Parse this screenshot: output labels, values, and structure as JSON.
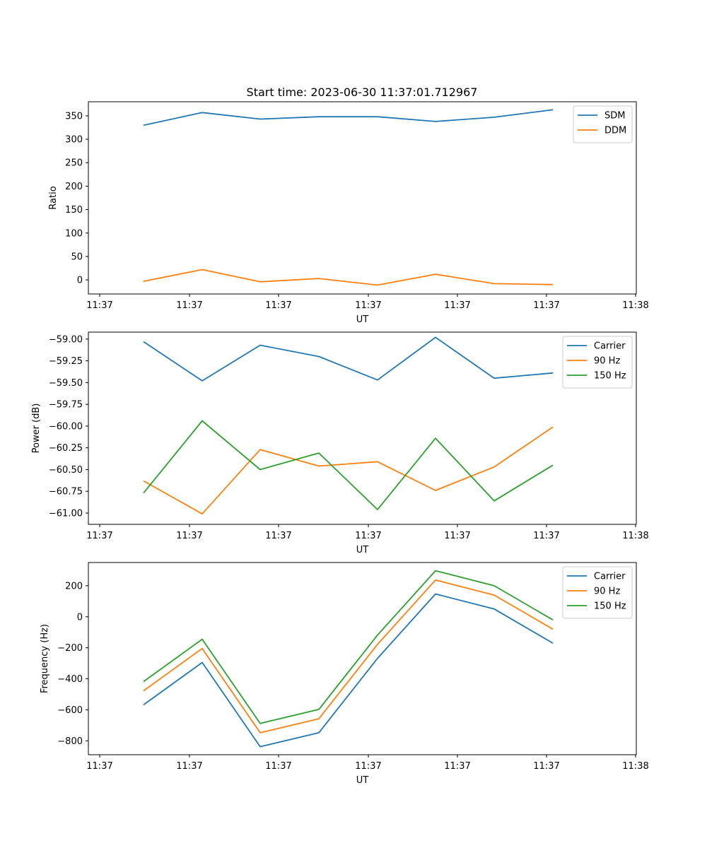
{
  "title": "Start time: 2023-06-30 11:37:01.712967",
  "chart_data": [
    {
      "type": "line",
      "title": "Start time: 2023-06-30 11:37:01.712967",
      "xlabel": "UT",
      "ylabel": "Ratio",
      "x_tick_labels": [
        "11:37",
        "11:37",
        "11:37",
        "11:37",
        "11:37",
        "11:37",
        "11:38"
      ],
      "ylim": [
        -30,
        380
      ],
      "yticks": [
        0,
        50,
        100,
        150,
        200,
        250,
        300,
        350
      ],
      "ytick_labels": [
        "0",
        "50",
        "100",
        "150",
        "200",
        "250",
        "300",
        "350"
      ],
      "legend_position": "top-right",
      "series": [
        {
          "name": "SDM",
          "color": "#1f77b4",
          "values": [
            330,
            357,
            343,
            348,
            348,
            338,
            347,
            363
          ]
        },
        {
          "name": "DDM",
          "color": "#ff7f0e",
          "values": [
            -3,
            22,
            -4,
            3,
            -11,
            12,
            -8,
            -10
          ]
        }
      ]
    },
    {
      "type": "line",
      "xlabel": "UT",
      "ylabel": "Power (dB)",
      "x_tick_labels": [
        "11:37",
        "11:37",
        "11:37",
        "11:37",
        "11:37",
        "11:37",
        "11:38"
      ],
      "ylim": [
        -61.13,
        -58.92
      ],
      "yticks": [
        -61.0,
        -60.75,
        -60.5,
        -60.25,
        -60.0,
        -59.75,
        -59.5,
        -59.25,
        -59.0
      ],
      "ytick_labels": [
        "−61.00",
        "−60.75",
        "−60.50",
        "−60.25",
        "−60.00",
        "−59.75",
        "−59.50",
        "−59.25",
        "−59.00"
      ],
      "legend_position": "top-right",
      "series": [
        {
          "name": "Carrier",
          "color": "#1f77b4",
          "values": [
            -59.03,
            -59.48,
            -59.07,
            -59.2,
            -59.47,
            -58.98,
            -59.45,
            -59.39
          ]
        },
        {
          "name": "90 Hz",
          "color": "#ff7f0e",
          "values": [
            -60.63,
            -61.01,
            -60.27,
            -60.46,
            -60.41,
            -60.74,
            -60.47,
            -60.01
          ]
        },
        {
          "name": "150 Hz",
          "color": "#2ca02c",
          "values": [
            -60.77,
            -59.94,
            -60.5,
            -60.31,
            -60.96,
            -60.14,
            -60.86,
            -60.45
          ]
        }
      ]
    },
    {
      "type": "line",
      "xlabel": "UT",
      "ylabel": "Frequency (Hz)",
      "x_tick_labels": [
        "11:37",
        "11:37",
        "11:37",
        "11:37",
        "11:37",
        "11:37",
        "11:38"
      ],
      "ylim": [
        -890,
        350
      ],
      "yticks": [
        -800,
        -600,
        -400,
        -200,
        0,
        200
      ],
      "ytick_labels": [
        "−800",
        "−600",
        "−400",
        "−200",
        "0",
        "200"
      ],
      "legend_position": "top-right",
      "series": [
        {
          "name": "Carrier",
          "color": "#1f77b4",
          "values": [
            -568,
            -295,
            -838,
            -748,
            -268,
            147,
            50,
            -170
          ]
        },
        {
          "name": "90 Hz",
          "color": "#ff7f0e",
          "values": [
            -478,
            -205,
            -748,
            -658,
            -178,
            237,
            140,
            -80
          ]
        },
        {
          "name": "150 Hz",
          "color": "#2ca02c",
          "values": [
            -418,
            -145,
            -688,
            -598,
            -118,
            297,
            200,
            -20
          ]
        }
      ]
    }
  ]
}
